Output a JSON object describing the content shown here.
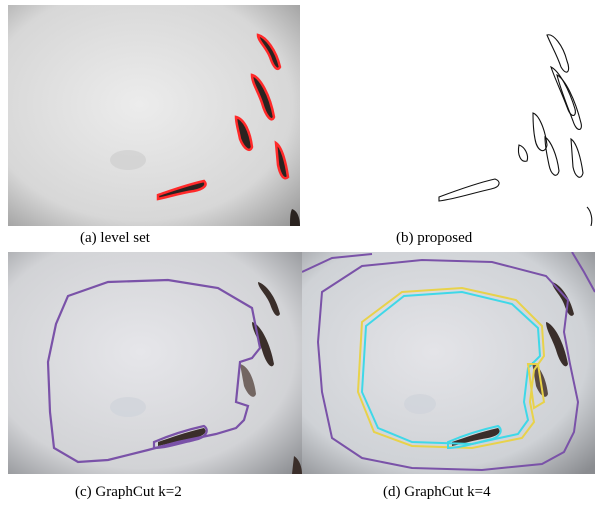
{
  "figure": {
    "panels": [
      {
        "id": "a",
        "caption": "(a) level set"
      },
      {
        "id": "b",
        "caption": "(b) proposed"
      },
      {
        "id": "c",
        "caption": "(c) GraphCut k=2"
      },
      {
        "id": "d",
        "caption": "(d) GraphCut k=4"
      }
    ]
  },
  "colors": {
    "background_gray": "#e2e2e2",
    "fish_dark": "#2a2320",
    "levelset_red": "#ff2a2a",
    "graphcut_contour": "#7a52a8",
    "graphcut_yellow": "#e8d24a",
    "graphcut_cyan": "#3fd8e8"
  }
}
